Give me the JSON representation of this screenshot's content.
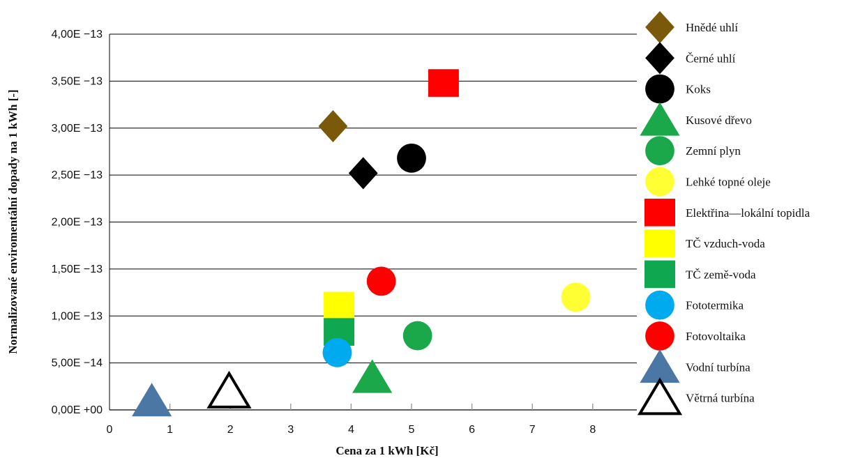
{
  "chart_data": {
    "type": "scatter",
    "xlabel": "Cena za 1 kWh [Kč]",
    "ylabel": "Normalizované enviromentální dopady na 1 kWh  [-]",
    "xlim": [
      0,
      8.75
    ],
    "ylim": [
      0,
      4e-13
    ],
    "x_ticks": [
      "0",
      "1",
      "2",
      "3",
      "4",
      "5",
      "6",
      "7",
      "8"
    ],
    "y_ticks": [
      "0,00E +00",
      "5,00E −14",
      "1,00E −13",
      "1,50E −13",
      "2,00E −13",
      "2,50E −13",
      "3,00E −13",
      "3,50E −13",
      "4,00E −13"
    ],
    "grid": "horizontal",
    "legend_position": "right",
    "series": [
      {
        "name": "Hnědé uhlí",
        "marker": "diamond",
        "color": "#7a5a0a",
        "hollow": false,
        "x": 3.7,
        "y": 3.02e-13
      },
      {
        "name": "Černé uhlí",
        "marker": "diamond",
        "color": "#000000",
        "hollow": false,
        "x": 4.2,
        "y": 2.52e-13
      },
      {
        "name": "Koks",
        "marker": "circle",
        "color": "#000000",
        "hollow": false,
        "x": 5.0,
        "y": 2.68e-13
      },
      {
        "name": "Kusové dřevo",
        "marker": "triangle",
        "color": "#1aa84b",
        "hollow": false,
        "x": 4.35,
        "y": 3.5e-14
      },
      {
        "name": "Zemní plyn",
        "marker": "circle",
        "color": "#1aa84b",
        "hollow": false,
        "x": 5.1,
        "y": 7.9e-14
      },
      {
        "name": "Lehké topné oleje",
        "marker": "circle",
        "color": "#ffff33",
        "hollow": false,
        "x": 7.72,
        "y": 1.2e-13
      },
      {
        "name": "Elektřina—lokální topidla",
        "marker": "square",
        "color": "#ff0000",
        "hollow": false,
        "x": 5.53,
        "y": 3.48e-13
      },
      {
        "name": "TČ vzduch-voda",
        "marker": "square",
        "color": "#ffff00",
        "hollow": false,
        "x": 3.8,
        "y": 1.11e-13
      },
      {
        "name": "TČ země-voda",
        "marker": "square",
        "color": "#0fa850",
        "hollow": false,
        "x": 3.8,
        "y": 8.3e-14
      },
      {
        "name": "Fototermika",
        "marker": "circle",
        "color": "#00aaee",
        "hollow": false,
        "x": 3.77,
        "y": 6.1e-14
      },
      {
        "name": "Fotovoltaika",
        "marker": "circle",
        "color": "#ff0000",
        "hollow": false,
        "x": 4.5,
        "y": 1.37e-13
      },
      {
        "name": "Vodní turbína",
        "marker": "triangle",
        "color": "#4a77a3",
        "hollow": false,
        "x": 0.7,
        "y": 1e-14
      },
      {
        "name": "Větrná turbína",
        "marker": "triangle",
        "color": "#000000",
        "hollow": true,
        "x": 1.98,
        "y": 2e-14
      }
    ]
  }
}
